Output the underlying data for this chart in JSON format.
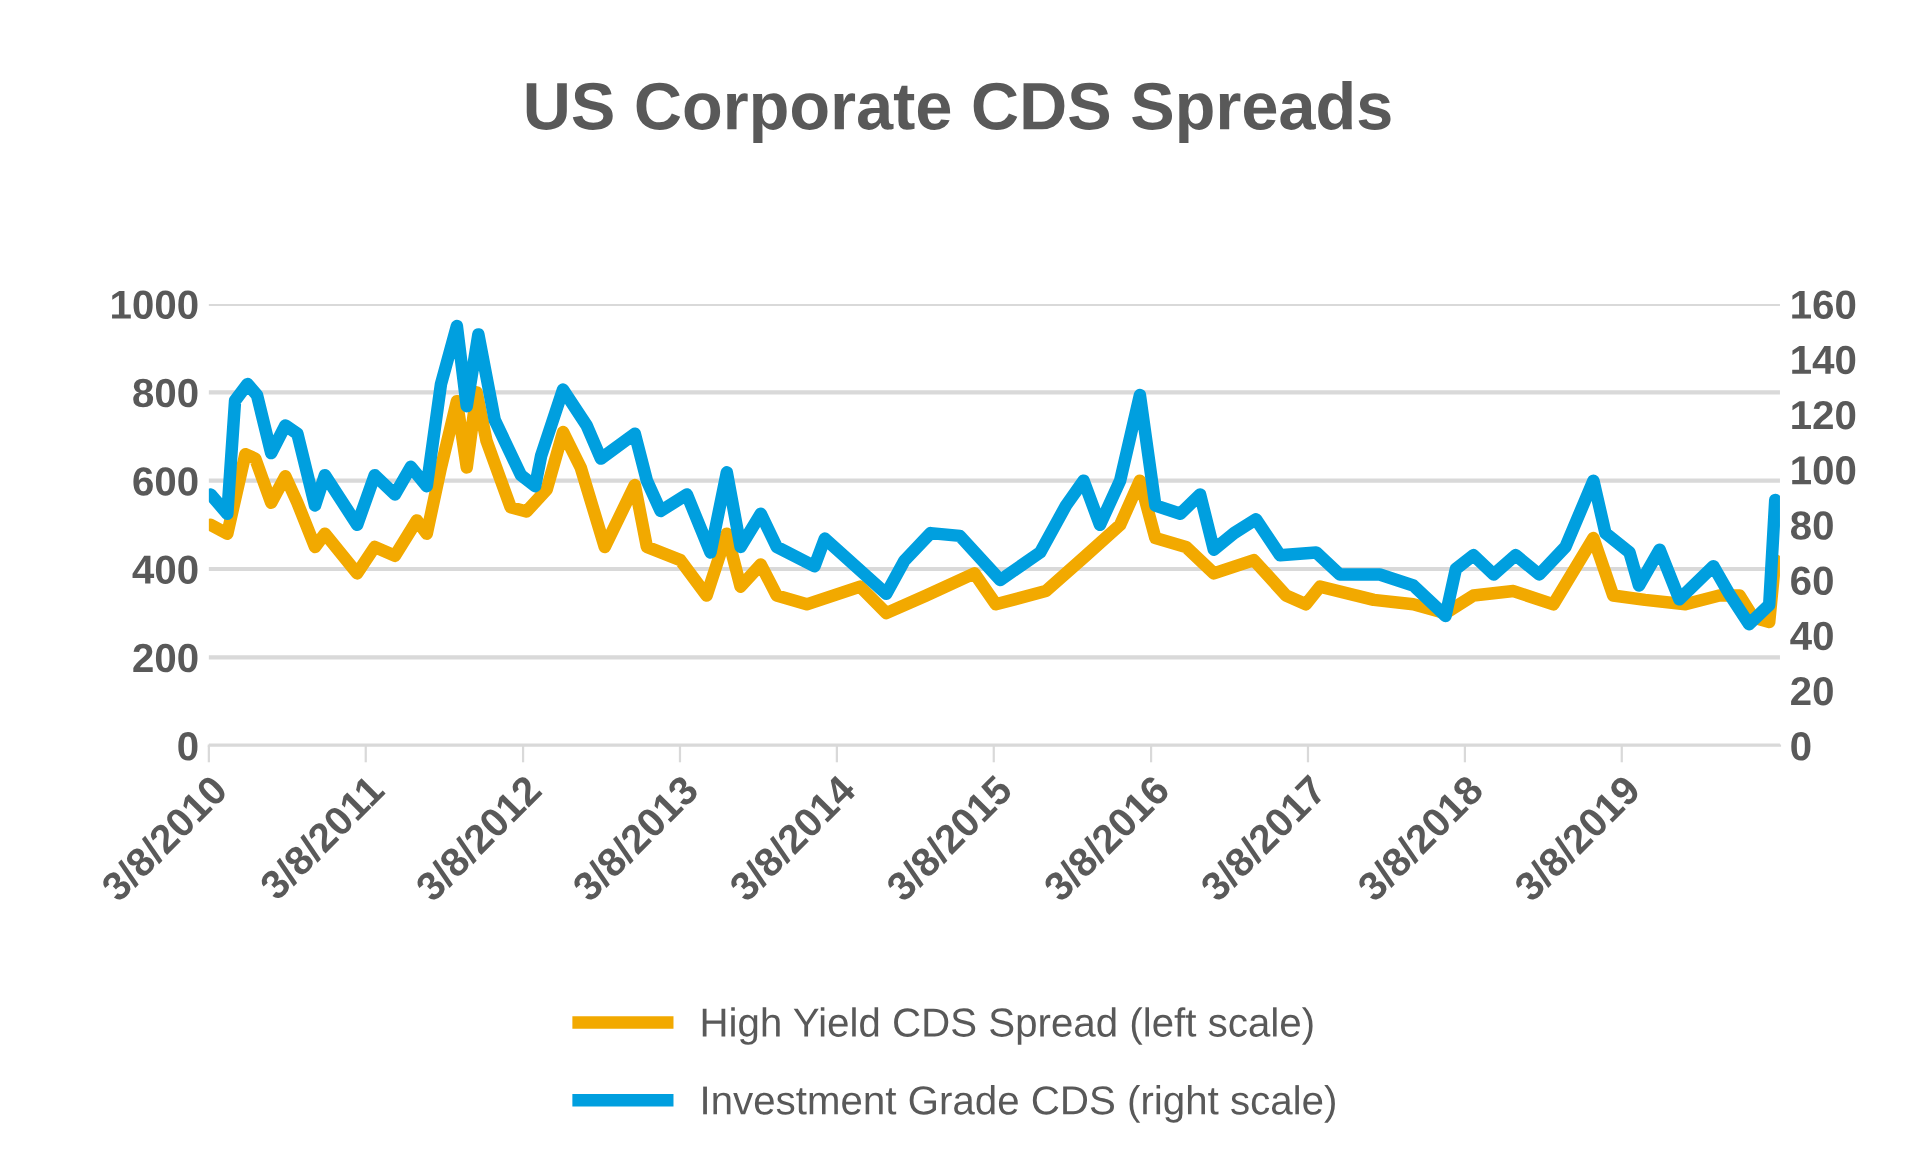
{
  "chart_data": {
    "type": "line",
    "title": "US Corporate CDS Spreads",
    "xlim": [
      "2010-03-08",
      "2020-03-10"
    ],
    "xticks": [
      {
        "value": "2010-03-08",
        "label": "3/8/2010"
      },
      {
        "value": "2011-03-08",
        "label": "3/8/2011"
      },
      {
        "value": "2012-03-08",
        "label": "3/8/2012"
      },
      {
        "value": "2013-03-08",
        "label": "3/8/2013"
      },
      {
        "value": "2014-03-08",
        "label": "3/8/2014"
      },
      {
        "value": "2015-03-08",
        "label": "3/8/2015"
      },
      {
        "value": "2016-03-08",
        "label": "3/8/2016"
      },
      {
        "value": "2017-03-08",
        "label": "3/8/2017"
      },
      {
        "value": "2018-03-08",
        "label": "3/8/2018"
      },
      {
        "value": "2019-03-08",
        "label": "3/8/2019"
      }
    ],
    "ylim": [
      0,
      1000
    ],
    "yticks": [
      0,
      200,
      400,
      600,
      800,
      1000
    ],
    "y2lim": [
      0,
      160
    ],
    "y2ticks": [
      0,
      20,
      40,
      60,
      80,
      100,
      120,
      140,
      160
    ],
    "grid": "y",
    "legend": "bottom",
    "series": [
      {
        "name": "High Yield CDS Spread (left scale)",
        "color": "#f2a900",
        "x": [
          "2010-03-12",
          "2010-04-20",
          "2010-06-01",
          "2010-06-24",
          "2010-07-31",
          "2010-09-02",
          "2010-09-30",
          "2010-11-10",
          "2010-12-03",
          "2011-02-16",
          "2011-03-29",
          "2011-05-15",
          "2011-07-05",
          "2011-07-28",
          "2011-08-30",
          "2011-10-06",
          "2011-10-29",
          "2011-11-21",
          "2011-12-14",
          "2012-02-08",
          "2012-03-16",
          "2012-05-02",
          "2012-06-09",
          "2012-07-20",
          "2012-09-14",
          "2012-11-23",
          "2012-12-21",
          "2013-03-09",
          "2013-05-09",
          "2013-06-25",
          "2013-07-27",
          "2013-09-12",
          "2013-10-19",
          "2013-12-28",
          "2014-05-01",
          "2014-07-01",
          "2014-10-02",
          "2015-01-22",
          "2015-03-13",
          "2015-07-07",
          "2015-10-08",
          "2015-12-27",
          "2016-02-11",
          "2016-03-18",
          "2016-05-28",
          "2016-08-01",
          "2016-11-02",
          "2017-01-16",
          "2017-03-03",
          "2017-04-05",
          "2017-08-08",
          "2017-11-08",
          "2018-01-22",
          "2018-03-28",
          "2018-06-29",
          "2018-09-30",
          "2019-01-01",
          "2019-02-16",
          "2019-05-01",
          "2019-08-03",
          "2019-10-21",
          "2019-12-07",
          "2020-01-08",
          "2020-02-14",
          "2020-02-28"
        ],
        "values": [
          500,
          480,
          660,
          650,
          550,
          610,
          550,
          450,
          480,
          390,
          450,
          430,
          510,
          480,
          630,
          780,
          630,
          800,
          690,
          540,
          530,
          580,
          710,
          630,
          450,
          590,
          450,
          420,
          340,
          480,
          360,
          410,
          340,
          320,
          360,
          300,
          340,
          390,
          320,
          350,
          430,
          500,
          600,
          470,
          450,
          390,
          420,
          340,
          320,
          360,
          330,
          320,
          300,
          340,
          350,
          320,
          470,
          340,
          330,
          320,
          340,
          340,
          290,
          280,
          420
        ]
      },
      {
        "name": "Investment Grade CDS (right scale)",
        "color": "#009fdf",
        "axis": "y2",
        "x": [
          "2010-03-12",
          "2010-04-20",
          "2010-05-08",
          "2010-06-06",
          "2010-06-28",
          "2010-07-31",
          "2010-09-02",
          "2010-09-30",
          "2010-11-10",
          "2010-12-03",
          "2011-02-16",
          "2011-03-29",
          "2011-05-15",
          "2011-06-21",
          "2011-07-28",
          "2011-08-30",
          "2011-10-06",
          "2011-10-29",
          "2011-11-25",
          "2012-01-02",
          "2012-03-03",
          "2012-04-05",
          "2012-04-19",
          "2012-06-09",
          "2012-08-03",
          "2012-09-05",
          "2012-11-23",
          "2012-12-21",
          "2013-01-22",
          "2013-03-24",
          "2013-05-18",
          "2013-06-25",
          "2013-07-27",
          "2013-09-12",
          "2013-10-19",
          "2014-01-15",
          "2014-02-08",
          "2014-07-01",
          "2014-08-12",
          "2014-10-12",
          "2014-12-19",
          "2015-03-23",
          "2015-06-24",
          "2015-08-23",
          "2015-10-03",
          "2015-11-10",
          "2015-12-27",
          "2016-02-11",
          "2016-03-18",
          "2016-05-15",
          "2016-06-30",
          "2016-08-01",
          "2016-09-17",
          "2016-11-07",
          "2017-01-02",
          "2017-03-27",
          "2017-05-21",
          "2017-08-22",
          "2017-11-08",
          "2018-01-22",
          "2018-02-15",
          "2018-03-28",
          "2018-05-14",
          "2018-07-04",
          "2018-08-28",
          "2018-10-28",
          "2019-01-01",
          "2019-01-29",
          "2019-03-26",
          "2019-04-17",
          "2019-06-04",
          "2019-07-20",
          "2019-10-07",
          "2019-11-13",
          "2019-12-29",
          "2020-02-14",
          "2020-02-28"
        ],
        "values": [
          91,
          84,
          125,
          131,
          127,
          106,
          116,
          113,
          87,
          98,
          80,
          98,
          91,
          101,
          94,
          131,
          152,
          123,
          149,
          118,
          98,
          94,
          105,
          129,
          116,
          104,
          113,
          96,
          85,
          91,
          70,
          99,
          72,
          84,
          72,
          65,
          75,
          55,
          67,
          77,
          76,
          60,
          70,
          87,
          96,
          80,
          96,
          127,
          87,
          84,
          91,
          71,
          77,
          82,
          69,
          70,
          62,
          62,
          58,
          47,
          64,
          69,
          62,
          69,
          62,
          72,
          96,
          77,
          70,
          58,
          71,
          53,
          65,
          55,
          44,
          51,
          89
        ]
      }
    ]
  }
}
